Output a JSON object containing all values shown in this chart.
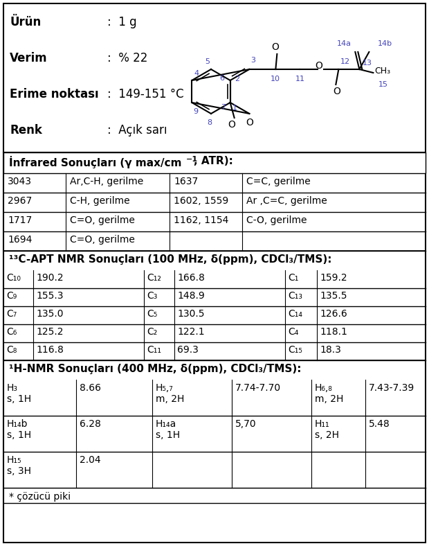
{
  "product_label": "Ürün",
  "product_value": ":  1 g",
  "yield_label": "Verim",
  "yield_value": ":  % 22",
  "mp_label": "Erime noktası",
  "mp_value": ":  149-151 °C",
  "color_label": "Renk",
  "color_value": ":  Açık sarı",
  "ir_header": "İnfrared Sonuçları (γ max/cm⁻¹, ATR):",
  "ir_data": [
    [
      "3043",
      "Ar,C-H, gerilme",
      "1637",
      "C=C, gerilme"
    ],
    [
      "2967",
      "C-H, gerilme",
      "1602, 1559",
      "Ar ,C=C, gerilme"
    ],
    [
      "1717",
      "C=O, gerilme",
      "1162, 1154",
      "C-O, gerilme"
    ],
    [
      "1694",
      "C=O, gerilme",
      "",
      ""
    ]
  ],
  "cnmr_data": [
    [
      "C₁₀",
      "190.2",
      "C₁₂",
      "166.8",
      "C₁",
      "159.2"
    ],
    [
      "C₉",
      "155.3",
      "C₃",
      "148.9",
      "C₁₃",
      "135.5"
    ],
    [
      "C₇",
      "135.0",
      "C₅",
      "130.5",
      "C₁₄",
      "126.6"
    ],
    [
      "C₆",
      "125.2",
      "C₂",
      "122.1",
      "C₄",
      "118.1"
    ],
    [
      "C₈",
      "116.8",
      "C₁₁",
      "69.3",
      "C₁₅",
      "18.3"
    ]
  ],
  "hnmr_data": [
    [
      "H₃\ns, 1H",
      "8.66",
      "H₅,₇\nm, 2H",
      "7.74-7.70",
      "H₆,₈\nm, 2H",
      "7.43-7.39"
    ],
    [
      "H₁₄b\ns, 1H",
      "6.28",
      "H₁₄a\ns, 1H",
      "5,70",
      "H₁₁\ns, 2H",
      "5.48"
    ],
    [
      "H₁₅\ns, 3H",
      "2.04",
      "",
      "",
      "",
      ""
    ]
  ],
  "footnote": "* çözücü piki",
  "bg_color": "#ffffff"
}
